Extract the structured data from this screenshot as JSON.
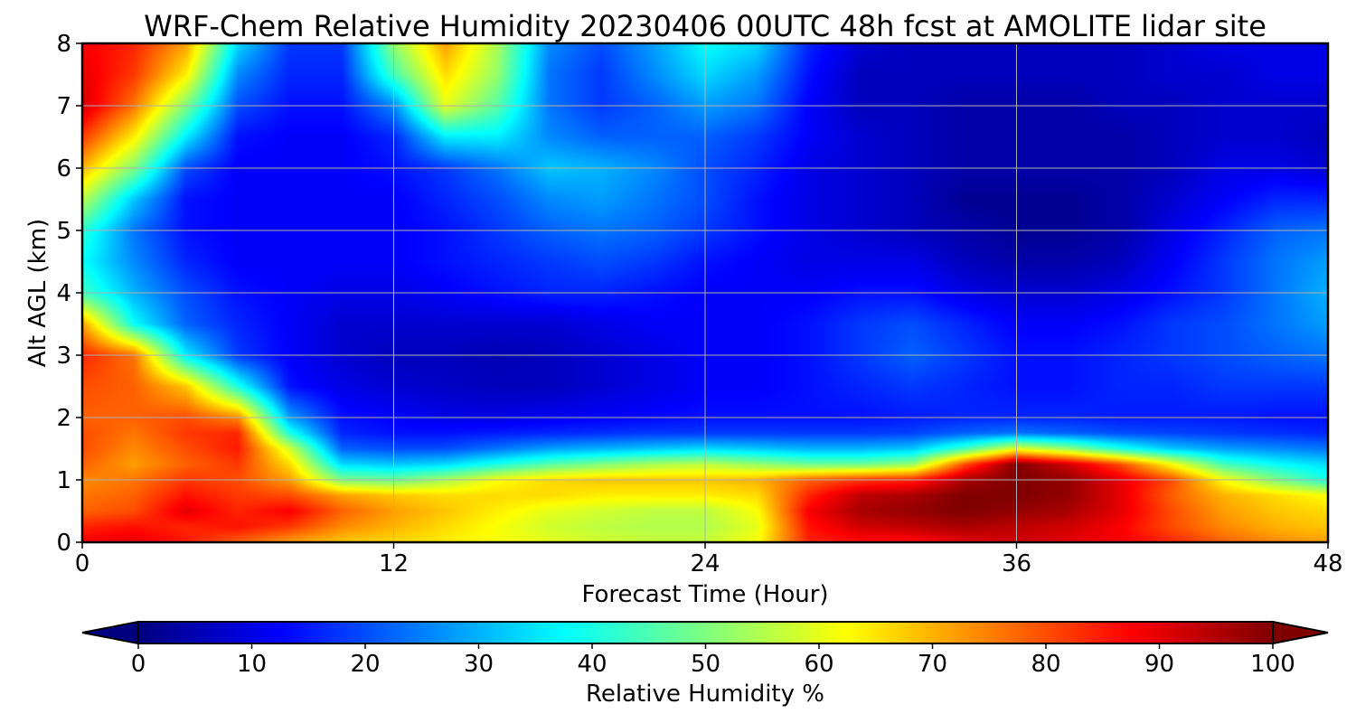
{
  "chart_data": {
    "type": "heatmap",
    "title": "WRF-Chem Relative Humidity 20230406 00UTC 48h fcst at AMOLITE lidar site",
    "xlabel": "Forecast Time (Hour)",
    "ylabel": "Alt AGL (km)",
    "xlim": [
      0,
      48
    ],
    "ylim": [
      0,
      8
    ],
    "x_ticks": [
      0,
      12,
      24,
      36,
      48
    ],
    "y_ticks": [
      0,
      1,
      2,
      3,
      4,
      5,
      6,
      7,
      8
    ],
    "grid": true,
    "colormap": "jet",
    "colorbar": {
      "label": "Relative Humidity %",
      "ticks": [
        0,
        10,
        20,
        30,
        40,
        50,
        60,
        70,
        80,
        90,
        100
      ],
      "range": [
        0,
        100
      ],
      "extend": "both",
      "orientation": "horizontal"
    },
    "grid_x": [
      0,
      2,
      4,
      6,
      8,
      10,
      12,
      14,
      16,
      18,
      20,
      22,
      24,
      26,
      28,
      30,
      32,
      34,
      36,
      38,
      40,
      42,
      44,
      46,
      48
    ],
    "grid_y": [
      0,
      0.25,
      0.5,
      0.75,
      1,
      1.25,
      1.5,
      1.75,
      2,
      2.5,
      3,
      3.5,
      4,
      4.5,
      5,
      5.5,
      6,
      6.5,
      7,
      7.5,
      8
    ],
    "values": [
      [
        88,
        90,
        85,
        78,
        72,
        68,
        66,
        64,
        62,
        60,
        58,
        57,
        57,
        62,
        84,
        86,
        86,
        90,
        92,
        90,
        88,
        84,
        78,
        74,
        72
      ],
      [
        84,
        86,
        84,
        86,
        82,
        74,
        70,
        66,
        62,
        58,
        56,
        55,
        55,
        60,
        86,
        92,
        94,
        96,
        94,
        92,
        88,
        80,
        74,
        70,
        68
      ],
      [
        78,
        80,
        90,
        84,
        88,
        78,
        72,
        68,
        64,
        60,
        58,
        56,
        56,
        62,
        88,
        96,
        98,
        100,
        98,
        96,
        90,
        80,
        72,
        68,
        66
      ],
      [
        76,
        78,
        86,
        82,
        80,
        72,
        68,
        66,
        66,
        66,
        64,
        64,
        64,
        66,
        84,
        94,
        96,
        100,
        100,
        98,
        90,
        78,
        70,
        66,
        62
      ],
      [
        74,
        76,
        82,
        80,
        72,
        50,
        48,
        54,
        62,
        66,
        68,
        68,
        68,
        70,
        78,
        82,
        84,
        96,
        100,
        98,
        90,
        80,
        62,
        50,
        40
      ],
      [
        78,
        72,
        78,
        82,
        66,
        34,
        32,
        34,
        40,
        46,
        50,
        54,
        56,
        52,
        48,
        48,
        52,
        80,
        100,
        92,
        80,
        62,
        44,
        38,
        34
      ],
      [
        80,
        74,
        80,
        85,
        58,
        22,
        20,
        20,
        24,
        28,
        30,
        32,
        34,
        32,
        30,
        30,
        32,
        44,
        60,
        52,
        40,
        32,
        28,
        26,
        24
      ],
      [
        80,
        76,
        82,
        84,
        40,
        16,
        14,
        14,
        15,
        16,
        17,
        18,
        18,
        18,
        18,
        18,
        19,
        22,
        24,
        22,
        20,
        19,
        18,
        17,
        16
      ],
      [
        78,
        78,
        80,
        74,
        28,
        14,
        12,
        10,
        10,
        11,
        12,
        13,
        14,
        14,
        14,
        14,
        15,
        16,
        16,
        16,
        15,
        15,
        15,
        14,
        14
      ],
      [
        80,
        78,
        68,
        40,
        14,
        10,
        8,
        7,
        6,
        6,
        8,
        10,
        12,
        12,
        14,
        16,
        18,
        16,
        14,
        14,
        16,
        16,
        18,
        18,
        18
      ],
      [
        84,
        76,
        36,
        18,
        12,
        8,
        6,
        6,
        5,
        6,
        8,
        10,
        12,
        12,
        14,
        18,
        22,
        18,
        14,
        14,
        16,
        18,
        20,
        22,
        24
      ],
      [
        72,
        38,
        22,
        16,
        12,
        8,
        8,
        8,
        8,
        8,
        10,
        12,
        12,
        12,
        14,
        18,
        20,
        16,
        12,
        12,
        14,
        18,
        20,
        24,
        28
      ],
      [
        44,
        30,
        20,
        14,
        12,
        10,
        10,
        12,
        14,
        16,
        16,
        14,
        12,
        12,
        12,
        14,
        14,
        10,
        8,
        8,
        10,
        14,
        18,
        24,
        30
      ],
      [
        38,
        26,
        16,
        12,
        12,
        12,
        12,
        14,
        16,
        18,
        20,
        18,
        14,
        12,
        10,
        10,
        10,
        6,
        4,
        4,
        6,
        12,
        18,
        24,
        28
      ],
      [
        42,
        24,
        14,
        12,
        12,
        12,
        12,
        14,
        18,
        22,
        24,
        22,
        18,
        14,
        10,
        8,
        6,
        4,
        2,
        2,
        4,
        10,
        16,
        22,
        24
      ],
      [
        56,
        32,
        14,
        12,
        12,
        12,
        12,
        16,
        20,
        26,
        28,
        24,
        20,
        14,
        10,
        8,
        6,
        2,
        2,
        2,
        4,
        8,
        12,
        16,
        16
      ],
      [
        70,
        50,
        20,
        12,
        12,
        12,
        14,
        18,
        24,
        32,
        30,
        26,
        20,
        16,
        10,
        8,
        6,
        4,
        4,
        4,
        4,
        6,
        10,
        10,
        8
      ],
      [
        82,
        64,
        36,
        14,
        12,
        12,
        16,
        36,
        36,
        26,
        22,
        22,
        22,
        18,
        12,
        8,
        6,
        4,
        4,
        4,
        4,
        6,
        8,
        8,
        6
      ],
      [
        92,
        76,
        50,
        20,
        14,
        14,
        26,
        60,
        46,
        24,
        18,
        22,
        28,
        24,
        12,
        6,
        6,
        4,
        4,
        4,
        6,
        6,
        8,
        8,
        8
      ],
      [
        90,
        82,
        64,
        26,
        16,
        16,
        44,
        66,
        52,
        24,
        18,
        26,
        34,
        28,
        14,
        6,
        6,
        6,
        6,
        6,
        6,
        8,
        8,
        10,
        10
      ],
      [
        88,
        84,
        72,
        34,
        18,
        18,
        52,
        72,
        54,
        26,
        20,
        28,
        38,
        34,
        16,
        8,
        6,
        6,
        6,
        6,
        6,
        8,
        10,
        10,
        10
      ]
    ]
  }
}
